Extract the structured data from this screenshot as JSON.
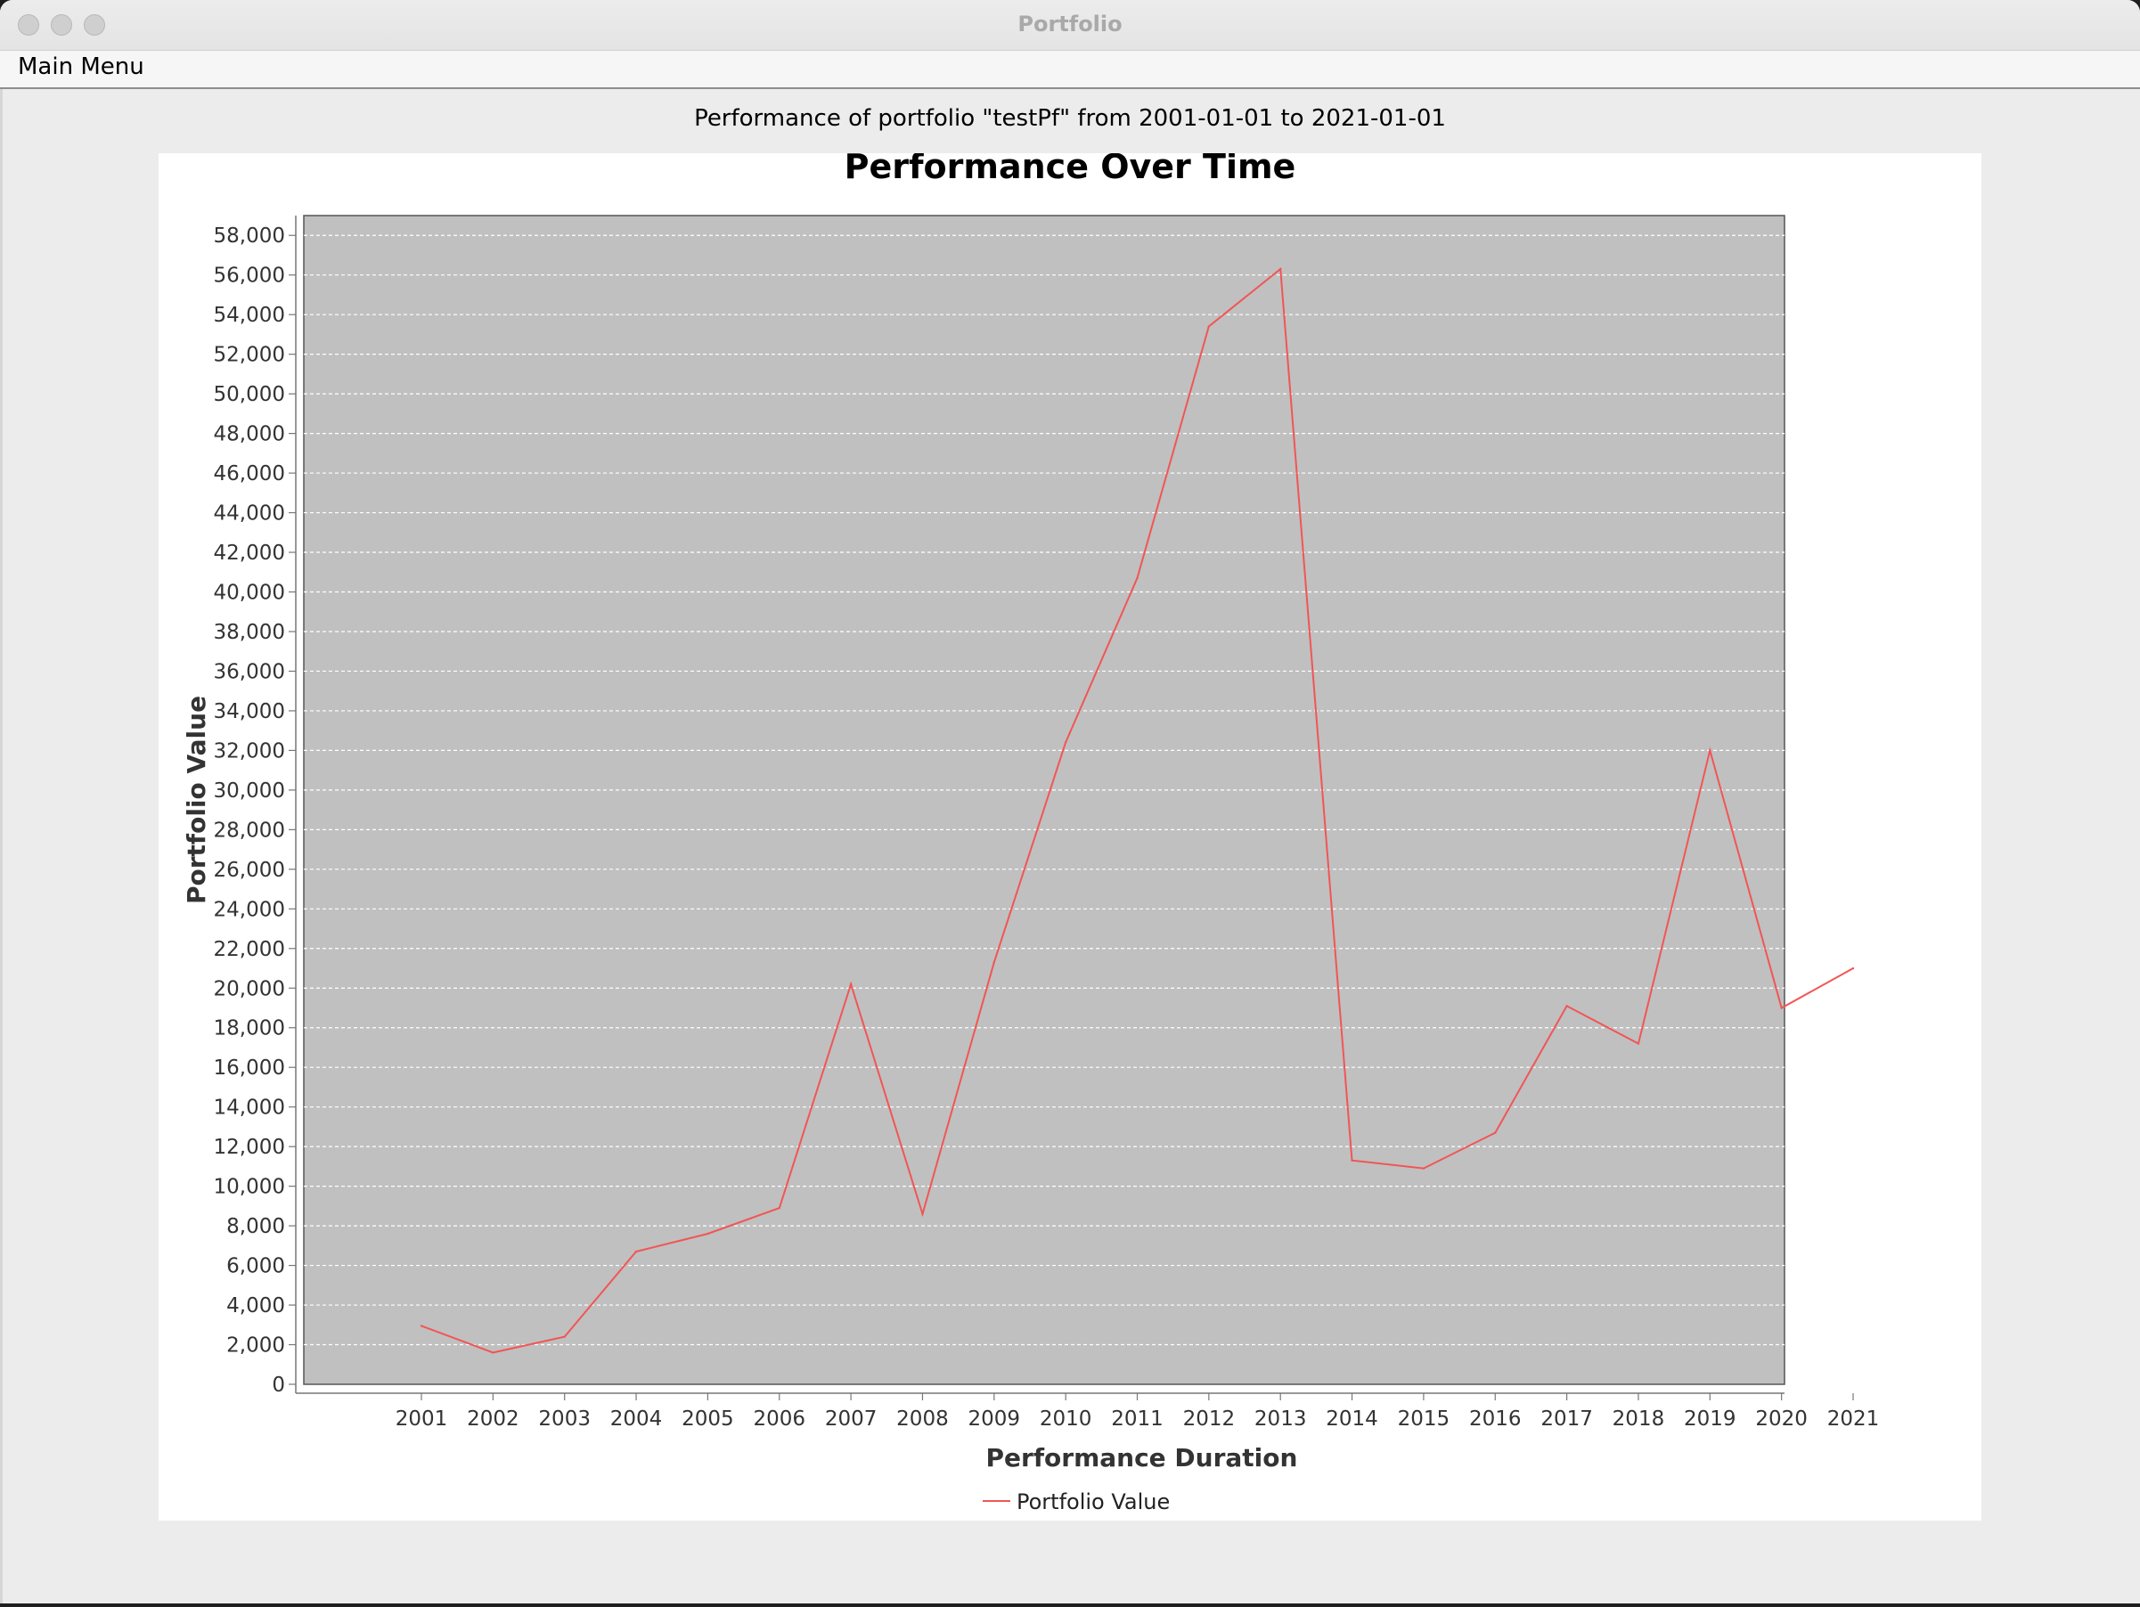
{
  "window": {
    "title": "Portfolio"
  },
  "menubar": {
    "items": [
      "Main Menu"
    ]
  },
  "heading": "Performance of portfolio \"testPf\" from 2001-01-01 to 2021-01-01",
  "colors": {
    "series_line": "#f25555",
    "plot_background": "#c0c0c0",
    "grid_line": "#ffffff"
  },
  "chart_data": {
    "type": "line",
    "title": "Performance Over Time",
    "xlabel": "Performance Duration",
    "ylabel": "Portfolio Value",
    "categories": [
      "2001",
      "2002",
      "2003",
      "2004",
      "2005",
      "2006",
      "2007",
      "2008",
      "2009",
      "2010",
      "2011",
      "2012",
      "2013",
      "2014",
      "2015",
      "2016",
      "2017",
      "2018",
      "2019",
      "2020",
      "2021"
    ],
    "series": [
      {
        "name": "Portfolio Value",
        "values": [
          2950,
          1600,
          2400,
          6700,
          7600,
          8900,
          20200,
          8600,
          21300,
          32400,
          40700,
          53400,
          56300,
          11300,
          10900,
          12700,
          19100,
          17200,
          32000,
          19000,
          21000
        ]
      }
    ],
    "ylim": [
      0,
      59000
    ],
    "yticks": [
      0,
      2000,
      4000,
      6000,
      8000,
      10000,
      12000,
      14000,
      16000,
      18000,
      20000,
      22000,
      24000,
      26000,
      28000,
      30000,
      32000,
      34000,
      36000,
      38000,
      40000,
      42000,
      44000,
      46000,
      48000,
      50000,
      52000,
      54000,
      56000,
      58000
    ],
    "grid": true,
    "legend": "bottom-center"
  }
}
